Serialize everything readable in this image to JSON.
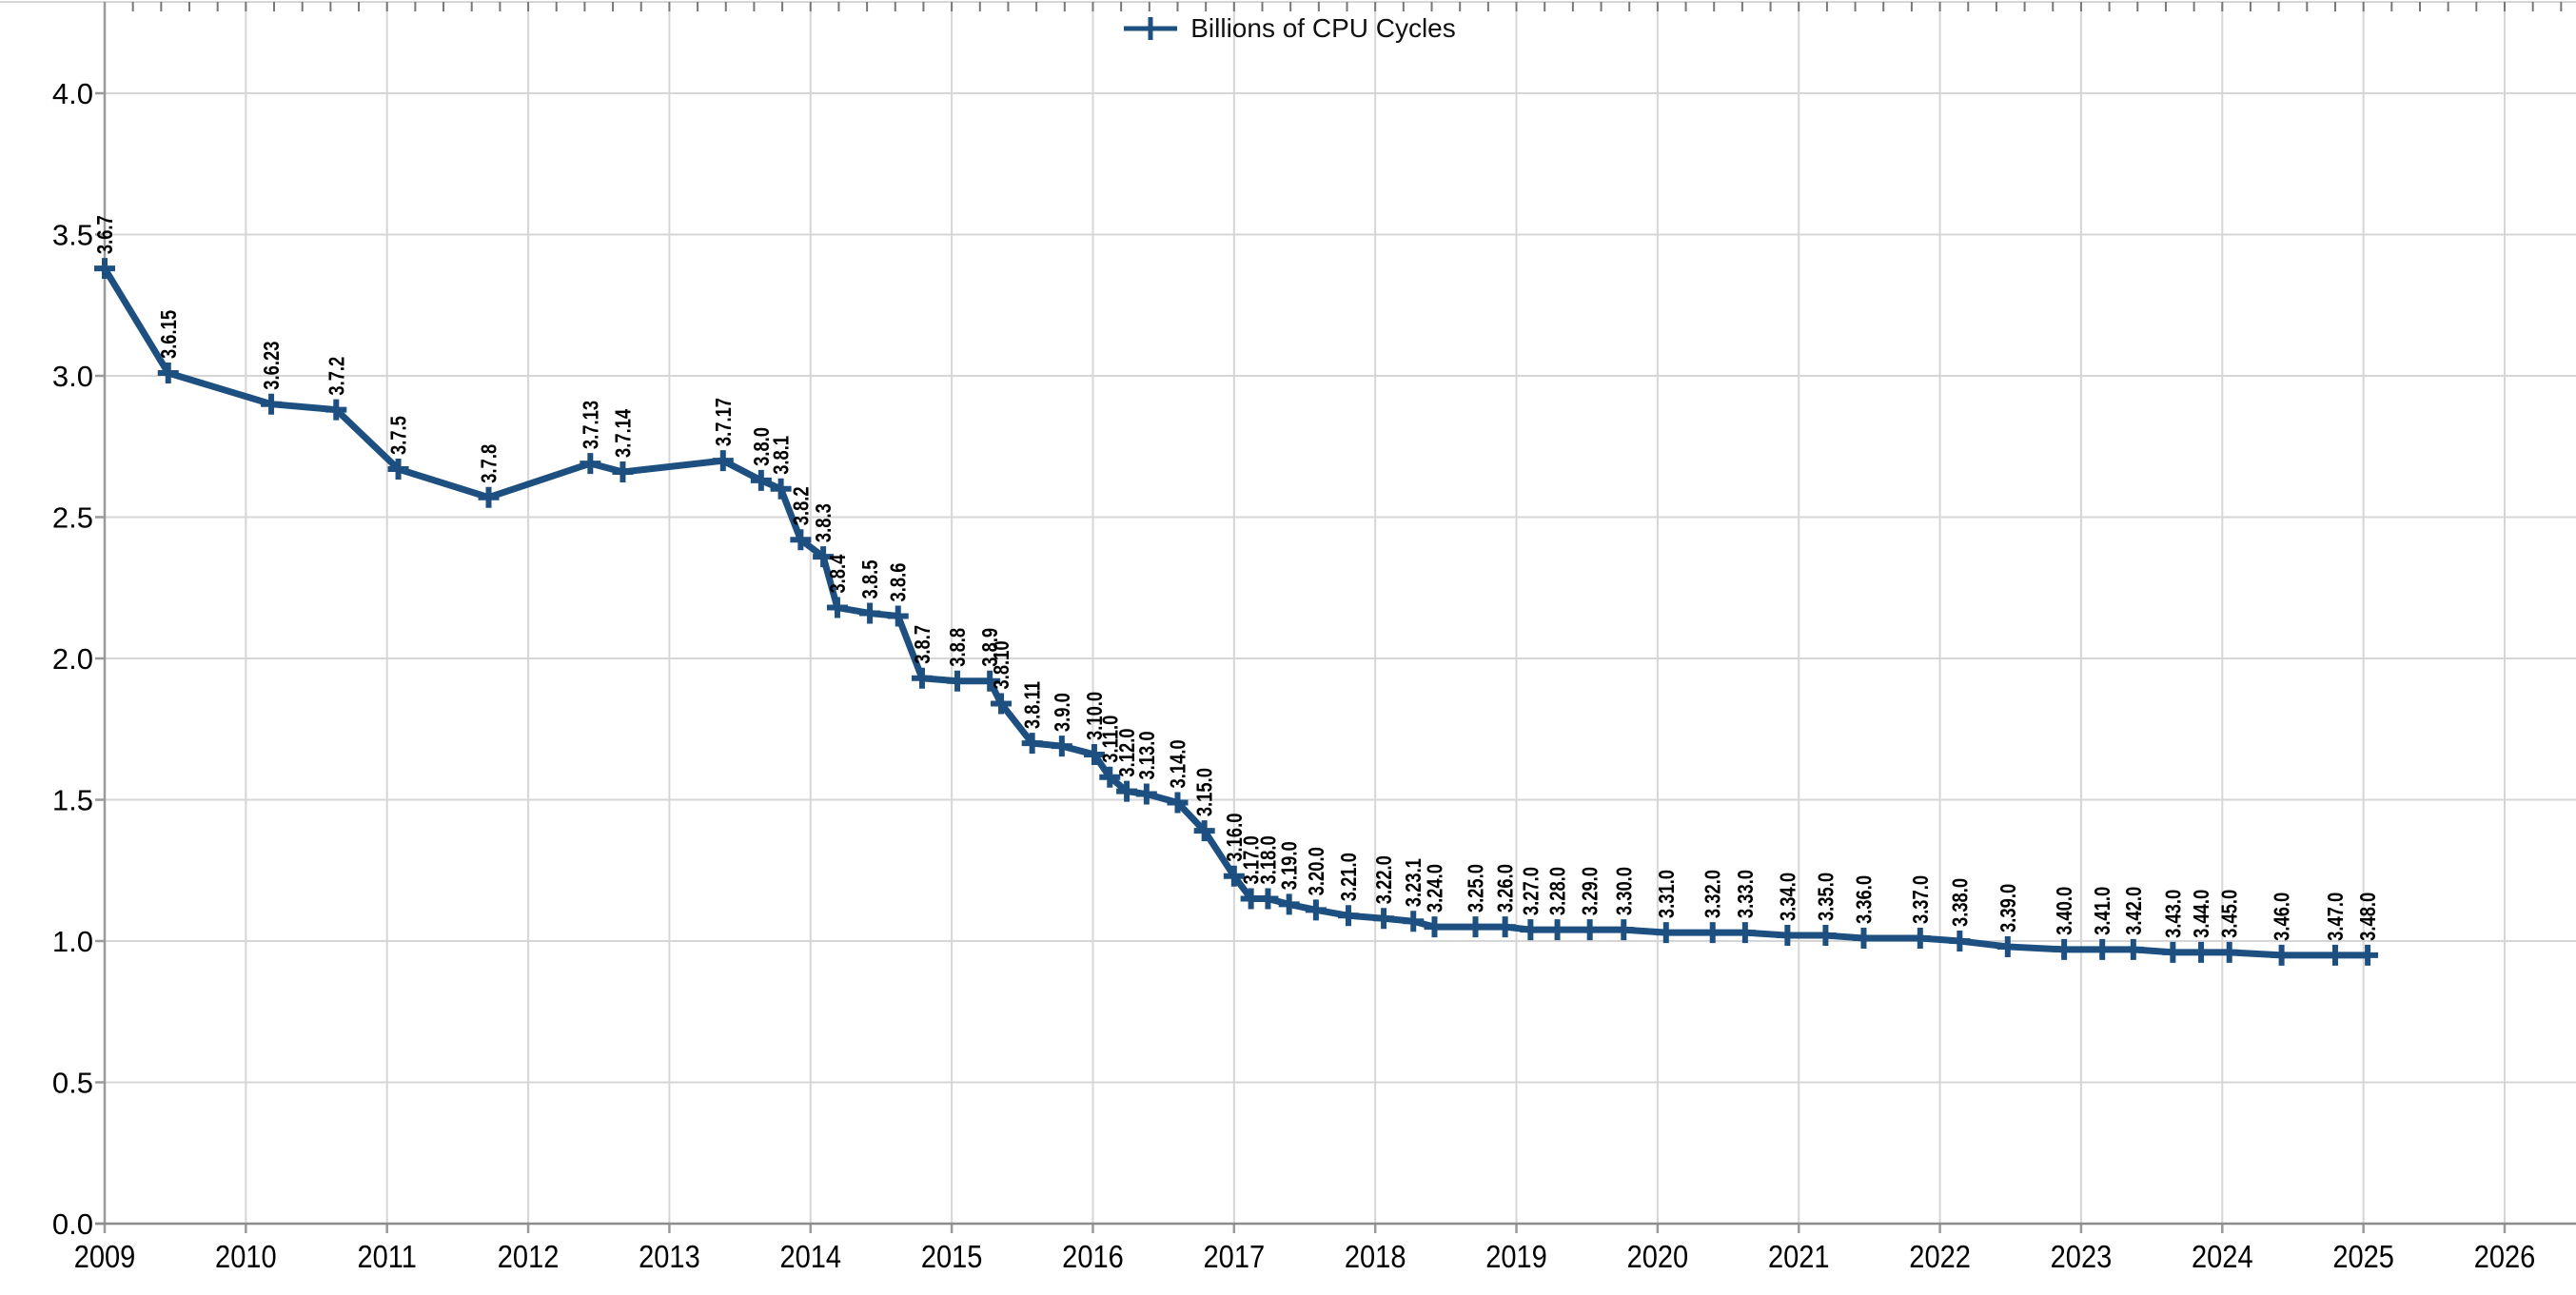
{
  "legend": {
    "label": "Billions of CPU Cycles"
  },
  "colors": {
    "series": "#1d5081",
    "grid": "#d6d6d6",
    "axis": "#9a9a9a",
    "axis_dark": "#8c8c8c",
    "tick": "#777777",
    "text": "#000000"
  },
  "chart_data": {
    "type": "line",
    "title": "",
    "xlabel": "",
    "ylabel": "",
    "legend_entries": [
      "Billions of CPU Cycles"
    ],
    "legend_position": "top-center",
    "grid": true,
    "marker": "plus",
    "xlim": [
      2009,
      2026
    ],
    "ylim": [
      0.0,
      4.0
    ],
    "x_tick_labels": [
      "2009",
      "2010",
      "2011",
      "2012",
      "2013",
      "2014",
      "2015",
      "2016",
      "2017",
      "2018",
      "2019",
      "2020",
      "2021",
      "2022",
      "2023",
      "2024",
      "2025",
      "2026"
    ],
    "y_tick_labels": [
      "0.0",
      "0.5",
      "1.0",
      "1.5",
      "2.0",
      "2.5",
      "3.0",
      "3.5",
      "4.0"
    ],
    "minor_x_tick_interval": 0.2,
    "series": [
      {
        "name": "Billions of CPU Cycles",
        "points": [
          {
            "label": "3.6.7",
            "x": 2009.0,
            "y": 3.38
          },
          {
            "label": "3.6.15",
            "x": 2009.45,
            "y": 3.01
          },
          {
            "label": "3.6.23",
            "x": 2010.18,
            "y": 2.9
          },
          {
            "label": "3.7.2",
            "x": 2010.64,
            "y": 2.88
          },
          {
            "label": "3.7.5",
            "x": 2011.08,
            "y": 2.67
          },
          {
            "label": "3.7.8",
            "x": 2011.72,
            "y": 2.57
          },
          {
            "label": "3.7.13",
            "x": 2012.44,
            "y": 2.69
          },
          {
            "label": "3.7.14",
            "x": 2012.67,
            "y": 2.66
          },
          {
            "label": "3.7.17",
            "x": 2013.38,
            "y": 2.7
          },
          {
            "label": "3.8.0",
            "x": 2013.65,
            "y": 2.63
          },
          {
            "label": "3.8.1",
            "x": 2013.79,
            "y": 2.6
          },
          {
            "label": "3.8.2",
            "x": 2013.93,
            "y": 2.42
          },
          {
            "label": "3.8.3",
            "x": 2014.09,
            "y": 2.36
          },
          {
            "label": "3.8.4",
            "x": 2014.19,
            "y": 2.18
          },
          {
            "label": "3.8.5",
            "x": 2014.42,
            "y": 2.16
          },
          {
            "label": "3.8.6",
            "x": 2014.62,
            "y": 2.15
          },
          {
            "label": "3.8.7",
            "x": 2014.79,
            "y": 1.93
          },
          {
            "label": "3.8.8",
            "x": 2015.04,
            "y": 1.92
          },
          {
            "label": "3.8.9",
            "x": 2015.27,
            "y": 1.92
          },
          {
            "label": "3.8.10",
            "x": 2015.35,
            "y": 1.84
          },
          {
            "label": "3.8.11",
            "x": 2015.57,
            "y": 1.7
          },
          {
            "label": "3.9.0",
            "x": 2015.78,
            "y": 1.69
          },
          {
            "label": "3.10.0",
            "x": 2016.01,
            "y": 1.66
          },
          {
            "label": "3.11.0",
            "x": 2016.12,
            "y": 1.58
          },
          {
            "label": "3.12.0",
            "x": 2016.24,
            "y": 1.53
          },
          {
            "label": "3.13.0",
            "x": 2016.38,
            "y": 1.52
          },
          {
            "label": "3.14.0",
            "x": 2016.6,
            "y": 1.49
          },
          {
            "label": "3.15.0",
            "x": 2016.79,
            "y": 1.39
          },
          {
            "label": "3.16.0",
            "x": 2017.0,
            "y": 1.23
          },
          {
            "label": "3.17.0",
            "x": 2017.12,
            "y": 1.15
          },
          {
            "label": "3.18.0",
            "x": 2017.24,
            "y": 1.15
          },
          {
            "label": "3.19.0",
            "x": 2017.39,
            "y": 1.13
          },
          {
            "label": "3.20.0",
            "x": 2017.58,
            "y": 1.11
          },
          {
            "label": "3.21.0",
            "x": 2017.81,
            "y": 1.09
          },
          {
            "label": "3.22.0",
            "x": 2018.06,
            "y": 1.08
          },
          {
            "label": "3.23.1",
            "x": 2018.27,
            "y": 1.07
          },
          {
            "label": "3.24.0",
            "x": 2018.42,
            "y": 1.05
          },
          {
            "label": "3.25.0",
            "x": 2018.71,
            "y": 1.05
          },
          {
            "label": "3.26.0",
            "x": 2018.92,
            "y": 1.05
          },
          {
            "label": "3.27.0",
            "x": 2019.1,
            "y": 1.04
          },
          {
            "label": "3.28.0",
            "x": 2019.29,
            "y": 1.04
          },
          {
            "label": "3.29.0",
            "x": 2019.52,
            "y": 1.04
          },
          {
            "label": "3.30.0",
            "x": 2019.76,
            "y": 1.04
          },
          {
            "label": "3.31.0",
            "x": 2020.06,
            "y": 1.03
          },
          {
            "label": "3.32.0",
            "x": 2020.39,
            "y": 1.03
          },
          {
            "label": "3.33.0",
            "x": 2020.62,
            "y": 1.03
          },
          {
            "label": "3.34.0",
            "x": 2020.92,
            "y": 1.02
          },
          {
            "label": "3.35.0",
            "x": 2021.19,
            "y": 1.02
          },
          {
            "label": "3.36.0",
            "x": 2021.46,
            "y": 1.01
          },
          {
            "label": "3.37.0",
            "x": 2021.86,
            "y": 1.01
          },
          {
            "label": "3.38.0",
            "x": 2022.14,
            "y": 1.0
          },
          {
            "label": "3.39.0",
            "x": 2022.48,
            "y": 0.98
          },
          {
            "label": "3.40.0",
            "x": 2022.88,
            "y": 0.97
          },
          {
            "label": "3.41.0",
            "x": 2023.15,
            "y": 0.97
          },
          {
            "label": "3.42.0",
            "x": 2023.37,
            "y": 0.97
          },
          {
            "label": "3.43.0",
            "x": 2023.65,
            "y": 0.96
          },
          {
            "label": "3.44.0",
            "x": 2023.85,
            "y": 0.96
          },
          {
            "label": "3.45.0",
            "x": 2024.05,
            "y": 0.96
          },
          {
            "label": "3.46.0",
            "x": 2024.42,
            "y": 0.95
          },
          {
            "label": "3.47.0",
            "x": 2024.8,
            "y": 0.95
          },
          {
            "label": "3.48.0",
            "x": 2025.03,
            "y": 0.95
          }
        ]
      }
    ]
  }
}
